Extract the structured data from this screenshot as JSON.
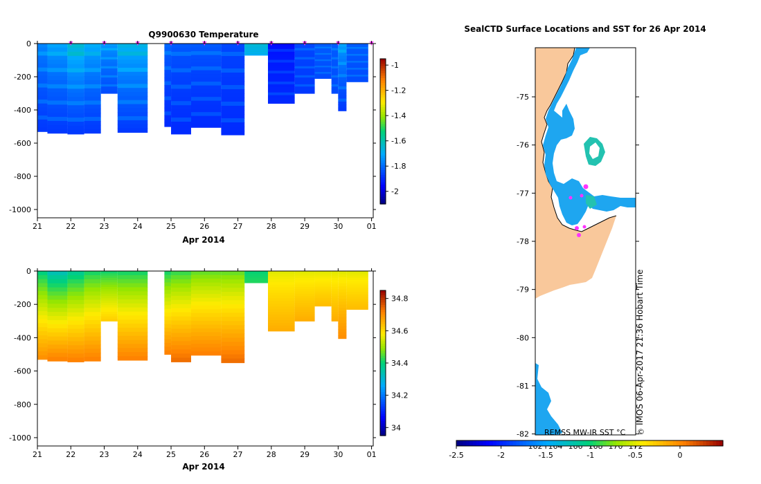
{
  "chart_data": [
    {
      "type": "heatmap",
      "title": "Q9900630  Temperature",
      "xlabel": "Apr 2014",
      "ylabel": "",
      "x_tick_labels": [
        "21",
        "22",
        "23",
        "24",
        "25",
        "26",
        "27",
        "28",
        "29",
        "30",
        "01"
      ],
      "y_tick_values": [
        0,
        -200,
        -400,
        -600,
        -800,
        -1000
      ],
      "y_tick_labels": [
        "0",
        "-200",
        "-400",
        "-600",
        "-800",
        "-1000"
      ],
      "xlim": [
        0,
        10.05
      ],
      "ylim": [
        -1050,
        0
      ],
      "colorbar": {
        "range": [
          -2.1,
          -0.95
        ],
        "tick_values": [
          -1,
          -1.2,
          -1.4,
          -1.6,
          -1.8,
          -2
        ],
        "tick_labels": [
          "-1",
          "-1.2",
          "-1.4",
          "-1.6",
          "-1.8",
          "-2"
        ]
      },
      "profiles": [
        {
          "x0": 0.0,
          "x1": 0.3,
          "bottom": -530,
          "t_surf": -1.75,
          "t_deep": -1.88
        },
        {
          "x0": 0.3,
          "x1": 0.9,
          "bottom": -540,
          "t_surf": -1.7,
          "t_deep": -1.88
        },
        {
          "x0": 0.9,
          "x1": 1.4,
          "bottom": -545,
          "t_surf": -1.62,
          "t_deep": -1.88
        },
        {
          "x0": 1.4,
          "x1": 1.9,
          "bottom": -540,
          "t_surf": -1.68,
          "t_deep": -1.88
        },
        {
          "x0": 1.9,
          "x1": 2.4,
          "bottom": -300,
          "t_surf": -1.72,
          "t_deep": -1.85
        },
        {
          "x0": 2.4,
          "x1": 3.3,
          "bottom": -535,
          "t_surf": -1.65,
          "t_deep": -1.88
        },
        {
          "x0": 3.8,
          "x1": 4.0,
          "bottom": -500,
          "t_surf": -1.8,
          "t_deep": -1.9
        },
        {
          "x0": 4.0,
          "x1": 4.6,
          "bottom": -545,
          "t_surf": -1.82,
          "t_deep": -1.9
        },
        {
          "x0": 4.6,
          "x1": 5.5,
          "bottom": -505,
          "t_surf": -1.82,
          "t_deep": -1.9
        },
        {
          "x0": 5.5,
          "x1": 6.2,
          "bottom": -550,
          "t_surf": -1.85,
          "t_deep": -1.9
        },
        {
          "x0": 6.2,
          "x1": 6.9,
          "bottom": -70,
          "t_surf": -1.65,
          "t_deep": -1.7
        },
        {
          "x0": 6.9,
          "x1": 7.7,
          "bottom": -360,
          "t_surf": -1.95,
          "t_deep": -1.9
        },
        {
          "x0": 7.7,
          "x1": 8.3,
          "bottom": -300,
          "t_surf": -1.85,
          "t_deep": -1.88
        },
        {
          "x0": 8.3,
          "x1": 8.8,
          "bottom": -210,
          "t_surf": -1.82,
          "t_deep": -1.85
        },
        {
          "x0": 8.8,
          "x1": 9.0,
          "bottom": -300,
          "t_surf": -1.82,
          "t_deep": -1.85
        },
        {
          "x0": 9.0,
          "x1": 9.25,
          "bottom": -405,
          "t_surf": -1.7,
          "t_deep": -1.88
        },
        {
          "x0": 9.25,
          "x1": 9.9,
          "bottom": -230,
          "t_surf": -1.82,
          "t_deep": -1.85
        }
      ],
      "surface_markers_x": [
        1.0,
        2.0,
        3.0,
        4.0,
        5.0,
        6.0,
        7.0,
        8.0,
        9.0,
        10.0
      ]
    },
    {
      "type": "heatmap",
      "title": "",
      "xlabel": "Apr 2014",
      "ylabel": "",
      "x_tick_labels": [
        "21",
        "22",
        "23",
        "24",
        "25",
        "26",
        "27",
        "28",
        "29",
        "30",
        "01"
      ],
      "y_tick_values": [
        0,
        -200,
        -400,
        -600,
        -800,
        -1000
      ],
      "y_tick_labels": [
        "0",
        "-200",
        "-400",
        "-600",
        "-800",
        "-1000"
      ],
      "xlim": [
        0,
        10.05
      ],
      "ylim": [
        -1050,
        0
      ],
      "colorbar": {
        "range": [
          33.95,
          34.85
        ],
        "tick_values": [
          34.8,
          34.6,
          34.4,
          34.2,
          34
        ],
        "tick_labels": [
          "34.8",
          "34.6",
          "34.4",
          "34.2",
          "34"
        ]
      },
      "profiles": [
        {
          "x0": 0.0,
          "x1": 0.3,
          "bottom": -530,
          "s_surf": 34.38,
          "s_deep": 34.7
        },
        {
          "x0": 0.3,
          "x1": 0.9,
          "bottom": -540,
          "s_surf": 34.32,
          "s_deep": 34.72
        },
        {
          "x0": 0.9,
          "x1": 1.4,
          "bottom": -545,
          "s_surf": 34.36,
          "s_deep": 34.72
        },
        {
          "x0": 1.4,
          "x1": 1.9,
          "bottom": -540,
          "s_surf": 34.4,
          "s_deep": 34.72
        },
        {
          "x0": 1.9,
          "x1": 2.4,
          "bottom": -300,
          "s_surf": 34.4,
          "s_deep": 34.62
        },
        {
          "x0": 2.4,
          "x1": 3.3,
          "bottom": -535,
          "s_surf": 34.4,
          "s_deep": 34.72
        },
        {
          "x0": 3.8,
          "x1": 4.0,
          "bottom": -500,
          "s_surf": 34.4,
          "s_deep": 34.72
        },
        {
          "x0": 4.0,
          "x1": 4.6,
          "bottom": -545,
          "s_surf": 34.42,
          "s_deep": 34.74
        },
        {
          "x0": 4.6,
          "x1": 5.5,
          "bottom": -505,
          "s_surf": 34.45,
          "s_deep": 34.72
        },
        {
          "x0": 5.5,
          "x1": 6.2,
          "bottom": -550,
          "s_surf": 34.45,
          "s_deep": 34.74
        },
        {
          "x0": 6.2,
          "x1": 6.9,
          "bottom": -70,
          "s_surf": 34.4,
          "s_deep": 34.42
        },
        {
          "x0": 6.9,
          "x1": 7.7,
          "bottom": -360,
          "s_surf": 34.55,
          "s_deep": 34.66
        },
        {
          "x0": 7.7,
          "x1": 8.3,
          "bottom": -300,
          "s_surf": 34.55,
          "s_deep": 34.66
        },
        {
          "x0": 8.3,
          "x1": 8.8,
          "bottom": -210,
          "s_surf": 34.55,
          "s_deep": 34.64
        },
        {
          "x0": 8.8,
          "x1": 9.0,
          "bottom": -300,
          "s_surf": 34.55,
          "s_deep": 34.66
        },
        {
          "x0": 9.0,
          "x1": 9.25,
          "bottom": -405,
          "s_surf": 34.55,
          "s_deep": 34.7
        },
        {
          "x0": 9.25,
          "x1": 9.9,
          "bottom": -230,
          "s_surf": 34.55,
          "s_deep": 34.64
        }
      ]
    },
    {
      "type": "map",
      "title": "SealCTD Surface Locations and SST for 26 Apr 2014",
      "y_tick_values": [
        -75,
        -76,
        -77,
        -78,
        -79,
        -80,
        -81,
        -82
      ],
      "y_tick_labels": [
        "-75",
        "-76",
        "-77",
        "-78",
        "-79",
        "-80",
        "-81",
        "-82"
      ],
      "ylim": [
        -82.02,
        -73.98
      ],
      "x_ticks_top_bottom": [
        "162",
        "164",
        "166",
        "168",
        "170",
        "172"
      ],
      "sst_label": "REMSS MW-IR SST °C",
      "vertical_label": "IMOS 06-Apr-2017 21:36 Hobart Time",
      "colorbar": {
        "range": [
          -2.5,
          0.48
        ],
        "tick_values": [
          -2.5,
          -2,
          -1.5,
          -1,
          -0.5,
          0
        ],
        "tick_labels": [
          "-2.5",
          "-2",
          "-1.5",
          "-1",
          "-0.5",
          "0"
        ]
      },
      "colors": {
        "land": "#f9c89b",
        "sea": "#1ea6f0",
        "sea_warm": "#23c2b0",
        "marker": "#ff33ff"
      }
    }
  ]
}
